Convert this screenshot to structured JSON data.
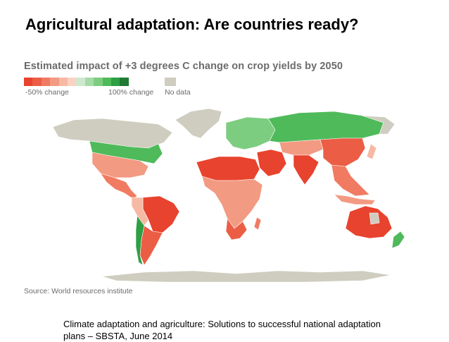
{
  "slide": {
    "title": "Agricultural adaptation: Are countries ready?",
    "footer": "Climate adaptation and agriculture: Solutions to successful national adaptation plans – SBSTA, June 2014"
  },
  "map": {
    "title": "Estimated impact of +3 degrees C change on crop yields by 2050",
    "source": "Source: World resources institute",
    "legend": {
      "min_label": "-50% change",
      "max_label": "100% change",
      "nodata_label": "No data",
      "scale_colors": [
        "#e8432e",
        "#ec5d45",
        "#f07b62",
        "#f39a82",
        "#f6b9a3",
        "#f9d3c2",
        "#cfe9cf",
        "#a6dba8",
        "#7ccd80",
        "#4fba5a",
        "#2e9f43",
        "#1f7a33"
      ],
      "nodata_color": "#cfcdbf"
    }
  }
}
